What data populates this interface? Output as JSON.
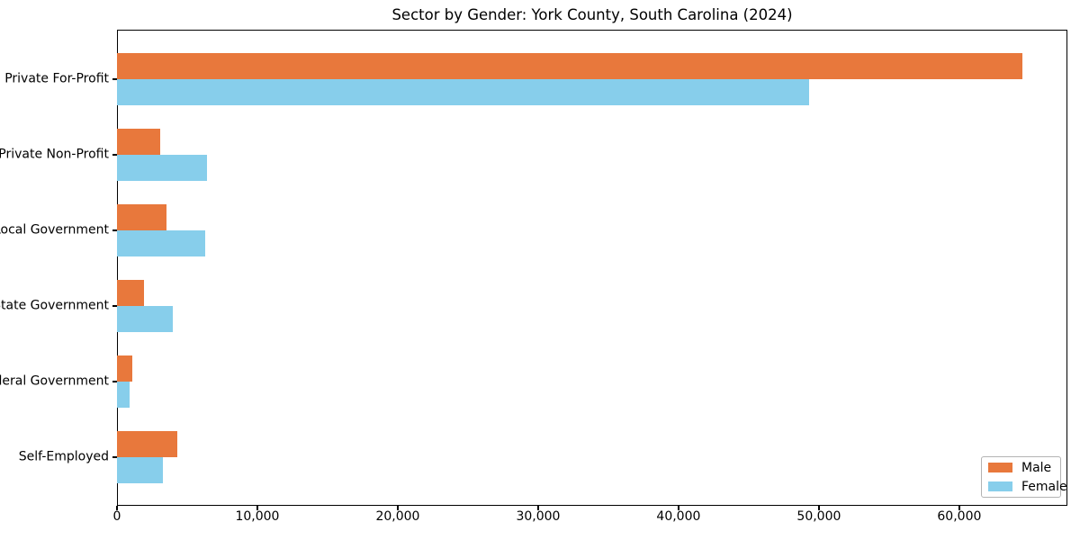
{
  "chart_data": {
    "type": "bar",
    "orientation": "horizontal",
    "title": "Sector by Gender: York County, South Carolina (2024)",
    "categories": [
      "Private For-Profit",
      "Private Non-Profit",
      "Local Government",
      "State Government",
      "Federal Government",
      "Self-Employed"
    ],
    "series": [
      {
        "name": "Male",
        "color": "#e8783c",
        "values": [
          64500,
          3100,
          3500,
          1900,
          1100,
          4300
        ]
      },
      {
        "name": "Female",
        "color": "#87ceeb",
        "values": [
          49300,
          6400,
          6300,
          4000,
          900,
          3300
        ]
      }
    ],
    "xlabel": "",
    "ylabel": "",
    "xlim": [
      0,
      67700
    ],
    "xticks": [
      0,
      10000,
      20000,
      30000,
      40000,
      50000,
      60000
    ],
    "xtick_labels": [
      "0",
      "10,000",
      "20,000",
      "30,000",
      "40,000",
      "50,000",
      "60,000"
    ],
    "grid": false,
    "legend_position": "lower right"
  },
  "colors": {
    "male": "#e8783c",
    "female": "#87ceeb",
    "axis": "#000000",
    "legend_border": "#b3b3b3",
    "background": "#ffffff"
  }
}
